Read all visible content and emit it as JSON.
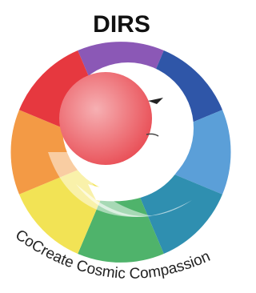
{
  "logo": {
    "title": "DIRS",
    "tagline": "CoCreate Cosmic Compassion"
  }
}
